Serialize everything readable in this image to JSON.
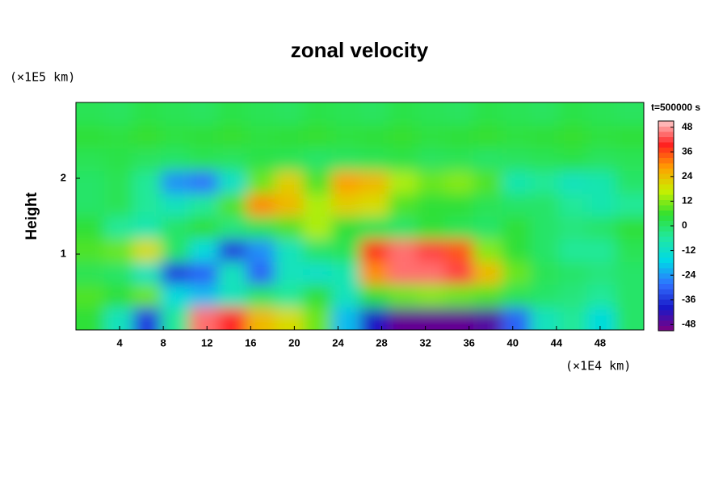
{
  "chart_data": {
    "type": "heatmap",
    "title": "zonal velocity",
    "ylabel": "Height",
    "xunit": "(×1E4 km)",
    "yunit": "(×1E5 km)",
    "colorbar_title": "t=500000 s",
    "xlim": [
      0,
      52
    ],
    "ylim": [
      0,
      3
    ],
    "xticks": [
      4,
      8,
      12,
      16,
      20,
      24,
      28,
      32,
      36,
      40,
      44,
      48
    ],
    "yticks": [
      1,
      2
    ],
    "zlim": [
      -51,
      51
    ],
    "cticks": [
      -48,
      -36,
      -24,
      -12,
      0,
      12,
      24,
      36,
      48
    ],
    "colormap": [
      "#800080",
      "#1818c8",
      "#3070ff",
      "#00d8e8",
      "#20e8a0",
      "#30e030",
      "#c8f000",
      "#ffa000",
      "#ff2020",
      "#ffc8c8"
    ],
    "x": [
      1.3,
      3.9,
      6.5,
      9.1,
      11.7,
      14.3,
      16.9,
      19.5,
      22.1,
      24.7,
      27.3,
      29.9,
      32.5,
      35.1,
      37.7,
      40.3,
      42.9,
      45.5,
      48.1,
      50.7
    ],
    "y": [
      0.15,
      0.45,
      0.75,
      1.05,
      1.35,
      1.65,
      1.95,
      2.25,
      2.55,
      2.85
    ],
    "z": [
      [
        5,
        -10,
        -35,
        -5,
        45,
        40,
        25,
        20,
        10,
        -20,
        -40,
        -48,
        -48,
        -48,
        -46,
        -30,
        -10,
        -5,
        -15,
        0
      ],
      [
        8,
        5,
        10,
        -15,
        -20,
        -10,
        0,
        -5,
        5,
        -10,
        5,
        10,
        12,
        10,
        8,
        2,
        0,
        -2,
        -5,
        0
      ],
      [
        2,
        0,
        -10,
        -35,
        -30,
        -10,
        -30,
        -10,
        -12,
        -8,
        30,
        45,
        45,
        42,
        25,
        10,
        2,
        0,
        -2,
        0
      ],
      [
        8,
        10,
        20,
        0,
        -15,
        -35,
        -25,
        -10,
        0,
        2,
        38,
        45,
        42,
        35,
        12,
        5,
        0,
        -5,
        -5,
        2
      ],
      [
        5,
        -5,
        -8,
        0,
        5,
        -2,
        2,
        8,
        15,
        5,
        2,
        0,
        5,
        2,
        0,
        5,
        0,
        -2,
        0,
        5
      ],
      [
        0,
        2,
        -5,
        -10,
        -5,
        8,
        30,
        25,
        15,
        22,
        20,
        8,
        5,
        5,
        2,
        0,
        0,
        -5,
        -8,
        -5
      ],
      [
        0,
        2,
        -5,
        -25,
        -28,
        -12,
        10,
        22,
        8,
        28,
        25,
        15,
        10,
        12,
        8,
        -8,
        -5,
        -10,
        -8,
        0
      ],
      [
        2,
        3,
        1,
        0,
        2,
        1,
        3,
        2,
        0,
        1,
        2,
        3,
        1,
        2,
        0,
        1,
        2,
        3,
        1,
        2
      ],
      [
        5,
        4,
        6,
        4,
        5,
        6,
        4,
        5,
        6,
        4,
        5,
        6,
        4,
        5,
        6,
        4,
        5,
        6,
        4,
        5
      ],
      [
        2,
        1,
        3,
        2,
        1,
        3,
        2,
        1,
        3,
        2,
        1,
        3,
        2,
        1,
        3,
        2,
        1,
        3,
        2,
        1
      ]
    ]
  }
}
